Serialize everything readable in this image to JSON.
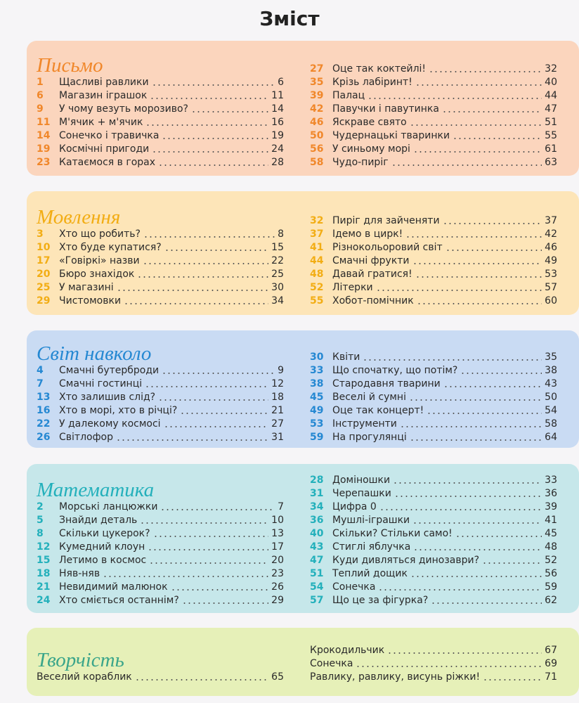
{
  "title": "Зміст",
  "sections": [
    {
      "heading": "Письмо",
      "left": [
        {
          "num": 1,
          "title": "Щасливі равлики",
          "page": 6
        },
        {
          "num": 6,
          "title": "Магазин іграшок",
          "page": 11
        },
        {
          "num": 9,
          "title": "У чому везуть морозиво?",
          "page": 14
        },
        {
          "num": 11,
          "title": "М'ячик + м'ячик",
          "page": 16
        },
        {
          "num": 14,
          "title": "Сонечко і травичка",
          "page": 19
        },
        {
          "num": 19,
          "title": "Космічні пригоди",
          "page": 24
        },
        {
          "num": 23,
          "title": "Катаємося в горах",
          "page": 28
        }
      ],
      "right": [
        {
          "num": 27,
          "title": "Оце так коктейлі!",
          "page": 32
        },
        {
          "num": 35,
          "title": "Крізь лабіринт!",
          "page": 40
        },
        {
          "num": 39,
          "title": "Палац",
          "page": 44
        },
        {
          "num": 42,
          "title": "Павучки і павутинка",
          "page": 47
        },
        {
          "num": 46,
          "title": "Яскраве свято",
          "page": 51
        },
        {
          "num": 50,
          "title": "Чудернацькі тваринки",
          "page": 55
        },
        {
          "num": 56,
          "title": "У синьому морі",
          "page": 61
        },
        {
          "num": 58,
          "title": "Чудо-пиріг",
          "page": 63
        }
      ]
    },
    {
      "heading": "Мовлення",
      "left": [
        {
          "num": 3,
          "title": "Хто що робить?",
          "page": 8
        },
        {
          "num": 10,
          "title": "Хто буде купатися?",
          "page": 15
        },
        {
          "num": 17,
          "title": "«Говіркі» назви",
          "page": 22
        },
        {
          "num": 20,
          "title": "Бюро знахідок",
          "page": 25
        },
        {
          "num": 25,
          "title": "У магазині",
          "page": 30
        },
        {
          "num": 29,
          "title": "Чистомовки",
          "page": 34
        }
      ],
      "right": [
        {
          "num": 32,
          "title": "Пиріг для зайченяти",
          "page": 37
        },
        {
          "num": 37,
          "title": "Ідемо в цирк!",
          "page": 42
        },
        {
          "num": 41,
          "title": "Різнокольоровий світ",
          "page": 46
        },
        {
          "num": 44,
          "title": "Смачні фрукти",
          "page": 49
        },
        {
          "num": 48,
          "title": "Давай гратися!",
          "page": 53
        },
        {
          "num": 52,
          "title": "Літерки",
          "page": 57
        },
        {
          "num": 55,
          "title": "Хобот-помічник",
          "page": 60
        }
      ]
    },
    {
      "heading": "Світ навколо",
      "left": [
        {
          "num": 4,
          "title": "Смачні бутерброди",
          "page": 9
        },
        {
          "num": 7,
          "title": "Смачні гостинці",
          "page": 12
        },
        {
          "num": 13,
          "title": "Хто залишив слід?",
          "page": 18
        },
        {
          "num": 16,
          "title": "Хто в морі, хто в річці?",
          "page": 21
        },
        {
          "num": 22,
          "title": "У далекому космосі",
          "page": 27
        },
        {
          "num": 26,
          "title": "Світлофор",
          "page": 31
        }
      ],
      "right": [
        {
          "num": 30,
          "title": "Квіти",
          "page": 35
        },
        {
          "num": 33,
          "title": "Що спочатку, що потім?",
          "page": 38
        },
        {
          "num": 38,
          "title": "Стародавня тварини",
          "page": 43
        },
        {
          "num": 45,
          "title": "Веселі й сумні",
          "page": 50
        },
        {
          "num": 49,
          "title": "Оце так концерт!",
          "page": 54
        },
        {
          "num": 53,
          "title": "Інструменти",
          "page": 58
        },
        {
          "num": 59,
          "title": "На прогулянці",
          "page": 64
        }
      ]
    },
    {
      "heading": "Математика",
      "left": [
        {
          "num": 2,
          "title": "Морські ланцюжки",
          "page": 7
        },
        {
          "num": 5,
          "title": "Знайди деталь",
          "page": 10
        },
        {
          "num": 8,
          "title": "Скільки цукерок?",
          "page": 13
        },
        {
          "num": 12,
          "title": "Кумедний клоун",
          "page": 17
        },
        {
          "num": 15,
          "title": "Летимо в космос",
          "page": 20
        },
        {
          "num": 18,
          "title": "Няв-няв",
          "page": 23
        },
        {
          "num": 21,
          "title": "Невидимий малюнок",
          "page": 26
        },
        {
          "num": 24,
          "title": "Хто сміється останнім?",
          "page": 29
        }
      ],
      "right": [
        {
          "num": 28,
          "title": "Доміношки",
          "page": 33
        },
        {
          "num": 31,
          "title": "Черепашки",
          "page": 36
        },
        {
          "num": 34,
          "title": "Цифра 0",
          "page": 39
        },
        {
          "num": 36,
          "title": "Мушлі-іграшки",
          "page": 41
        },
        {
          "num": 40,
          "title": "Скільки? Стільки само!",
          "page": 45
        },
        {
          "num": 43,
          "title": "Стиглі яблучка",
          "page": 48
        },
        {
          "num": 47,
          "title": "Куди дивляться динозаври?",
          "page": 52
        },
        {
          "num": 51,
          "title": "Теплий дощик",
          "page": 56
        },
        {
          "num": 54,
          "title": "Сонечка",
          "page": 59
        },
        {
          "num": 57,
          "title": "Що це за фігурка?",
          "page": 62
        }
      ]
    },
    {
      "heading": "Творчість",
      "left": [
        {
          "title": "Веселий кораблик",
          "page": 65
        }
      ],
      "right": [
        {
          "title": "Крокодильчик",
          "page": 67
        },
        {
          "title": "Сонечка",
          "page": 69
        },
        {
          "title": "Равлику, равлику, висунь ріжки!",
          "page": 71
        }
      ]
    }
  ]
}
